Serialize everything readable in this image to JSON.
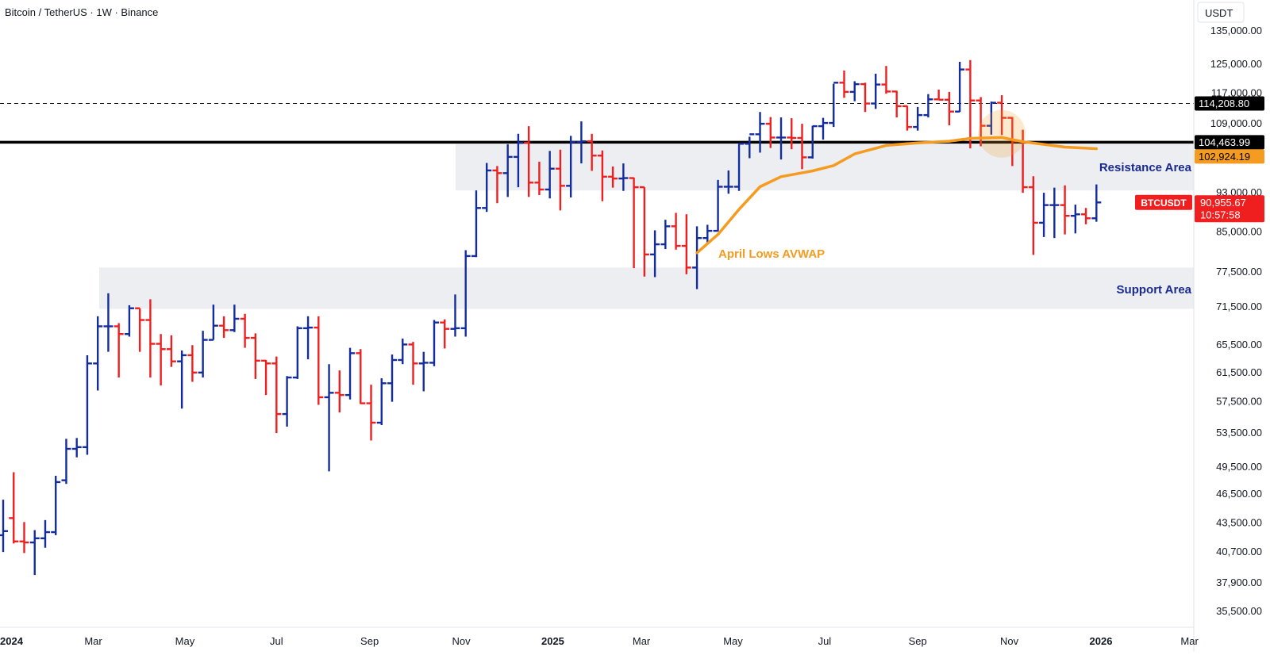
{
  "header": {
    "title": "Bitcoin / TetherUS · 1W · Binance"
  },
  "axis": {
    "currency": "USDT"
  },
  "colors": {
    "up": "#142d9e",
    "down": "#f01f1f",
    "avwap": "#f59b1f",
    "zone": "#eceef2",
    "resistance_line": "#000000",
    "label_blue": "#1a2a8c"
  },
  "annotations": {
    "avwap_label": "April Lows AVWAP",
    "resistance_label": "Resistance Area",
    "support_label": "Support Area"
  },
  "price_badges": {
    "dashed_level": "114,208.80",
    "resistance_level": "104,463.99",
    "avwap_level": "102,924.19",
    "symbol": "BTCUSDT",
    "last_price": "90,955.67",
    "countdown": "10:57:58"
  },
  "chart_data": {
    "type": "ohlc",
    "title": "Bitcoin / TetherUS · 1W · Binance",
    "scale": "log",
    "ylim": [
      34000,
      145000
    ],
    "y_ticks": [
      35500,
      37900,
      40700,
      43500,
      46500,
      49500,
      53500,
      57500,
      61500,
      65500,
      71500,
      77500,
      85000,
      93000,
      101000,
      109000,
      117000,
      125000,
      135000
    ],
    "x_ticks": [
      {
        "label": "2024",
        "date": "2024-01-01",
        "bold": true
      },
      {
        "label": "Mar",
        "date": "2024-03-01"
      },
      {
        "label": "May",
        "date": "2024-05-01"
      },
      {
        "label": "Jul",
        "date": "2024-07-01"
      },
      {
        "label": "Sep",
        "date": "2024-09-01"
      },
      {
        "label": "Nov",
        "date": "2024-11-01"
      },
      {
        "label": "2025",
        "date": "2025-01-01",
        "bold": true
      },
      {
        "label": "Mar",
        "date": "2025-03-01"
      },
      {
        "label": "May",
        "date": "2025-05-01"
      },
      {
        "label": "Jul",
        "date": "2025-07-01"
      },
      {
        "label": "Sep",
        "date": "2025-09-01"
      },
      {
        "label": "Nov",
        "date": "2025-11-01"
      },
      {
        "label": "2026",
        "date": "2026-01-01",
        "bold": true
      },
      {
        "label": "Mar",
        "date": "2026-03-01"
      }
    ],
    "resistance_zone": [
      93500,
      104000
    ],
    "support_zone": [
      71200,
      78300
    ],
    "horizontal_lines": [
      {
        "price": 114208.8,
        "style": "dashed"
      },
      {
        "price": 104463.99,
        "style": "solid"
      }
    ],
    "highlight_circle": {
      "date": "2025-10-27",
      "price": 106500
    },
    "avwap_points": [
      [
        "2025-04-07",
        81000
      ],
      [
        "2025-04-21",
        84500
      ],
      [
        "2025-05-05",
        89500
      ],
      [
        "2025-05-19",
        94300
      ],
      [
        "2025-06-02",
        96500
      ],
      [
        "2025-06-23",
        97800
      ],
      [
        "2025-07-07",
        99000
      ],
      [
        "2025-07-21",
        101700
      ],
      [
        "2025-08-11",
        103700
      ],
      [
        "2025-09-01",
        104300
      ],
      [
        "2025-09-22",
        104700
      ],
      [
        "2025-10-06",
        105400
      ],
      [
        "2025-10-27",
        105600
      ],
      [
        "2025-11-10",
        104600
      ],
      [
        "2025-12-08",
        103300
      ],
      [
        "2025-12-29",
        102924
      ]
    ],
    "bars": [
      {
        "date": "2024-01-01",
        "o": 42300,
        "h": 45900,
        "l": 40700,
        "c": 42700
      },
      {
        "date": "2024-01-08",
        "o": 44000,
        "h": 48900,
        "l": 41500,
        "c": 41700
      },
      {
        "date": "2024-01-15",
        "o": 41700,
        "h": 43600,
        "l": 40600,
        "c": 41600
      },
      {
        "date": "2024-01-22",
        "o": 41600,
        "h": 42800,
        "l": 38600,
        "c": 42000
      },
      {
        "date": "2024-01-29",
        "o": 42000,
        "h": 43800,
        "l": 41100,
        "c": 42600
      },
      {
        "date": "2024-02-05",
        "o": 42600,
        "h": 48500,
        "l": 42300,
        "c": 47800
      },
      {
        "date": "2024-02-12",
        "o": 48000,
        "h": 52800,
        "l": 47600,
        "c": 51600
      },
      {
        "date": "2024-02-19",
        "o": 51600,
        "h": 52900,
        "l": 50600,
        "c": 51800
      },
      {
        "date": "2024-02-26",
        "o": 51800,
        "h": 64000,
        "l": 50900,
        "c": 62800
      },
      {
        "date": "2024-03-04",
        "o": 62800,
        "h": 70000,
        "l": 59000,
        "c": 68400
      },
      {
        "date": "2024-03-11",
        "o": 68400,
        "h": 73800,
        "l": 64500,
        "c": 68400
      },
      {
        "date": "2024-03-18",
        "o": 68400,
        "h": 68900,
        "l": 60800,
        "c": 67200
      },
      {
        "date": "2024-03-25",
        "o": 67200,
        "h": 71800,
        "l": 66800,
        "c": 71300
      },
      {
        "date": "2024-04-01",
        "o": 71300,
        "h": 71300,
        "l": 64500,
        "c": 69400
      },
      {
        "date": "2024-04-08",
        "o": 69400,
        "h": 72800,
        "l": 60800,
        "c": 65700
      },
      {
        "date": "2024-04-15",
        "o": 65700,
        "h": 67200,
        "l": 59700,
        "c": 64900
      },
      {
        "date": "2024-04-22",
        "o": 64900,
        "h": 67000,
        "l": 62300,
        "c": 63100
      },
      {
        "date": "2024-04-29",
        "o": 63100,
        "h": 64700,
        "l": 56600,
        "c": 64000
      },
      {
        "date": "2024-05-06",
        "o": 64000,
        "h": 65500,
        "l": 60200,
        "c": 61500
      },
      {
        "date": "2024-05-13",
        "o": 61500,
        "h": 67700,
        "l": 60800,
        "c": 66300
      },
      {
        "date": "2024-05-20",
        "o": 66300,
        "h": 71900,
        "l": 66300,
        "c": 68500
      },
      {
        "date": "2024-05-27",
        "o": 68500,
        "h": 70000,
        "l": 66600,
        "c": 67800
      },
      {
        "date": "2024-06-03",
        "o": 67800,
        "h": 71900,
        "l": 67500,
        "c": 69600
      },
      {
        "date": "2024-06-10",
        "o": 69600,
        "h": 70400,
        "l": 65100,
        "c": 66600
      },
      {
        "date": "2024-06-17",
        "o": 66600,
        "h": 67300,
        "l": 60600,
        "c": 63200
      },
      {
        "date": "2024-06-24",
        "o": 63200,
        "h": 63300,
        "l": 58400,
        "c": 62800
      },
      {
        "date": "2024-07-01",
        "o": 62800,
        "h": 63800,
        "l": 53500,
        "c": 55900
      },
      {
        "date": "2024-07-08",
        "o": 55900,
        "h": 61000,
        "l": 54300,
        "c": 60800
      },
      {
        "date": "2024-07-15",
        "o": 60800,
        "h": 68400,
        "l": 60600,
        "c": 68100
      },
      {
        "date": "2024-07-22",
        "o": 68100,
        "h": 70000,
        "l": 63400,
        "c": 68200
      },
      {
        "date": "2024-07-29",
        "o": 68200,
        "h": 70000,
        "l": 57100,
        "c": 58100
      },
      {
        "date": "2024-08-05",
        "o": 58100,
        "h": 62700,
        "l": 49000,
        "c": 58700
      },
      {
        "date": "2024-08-12",
        "o": 58700,
        "h": 61800,
        "l": 56100,
        "c": 58400
      },
      {
        "date": "2024-08-19",
        "o": 58400,
        "h": 65100,
        "l": 57800,
        "c": 64300
      },
      {
        "date": "2024-08-26",
        "o": 64300,
        "h": 64900,
        "l": 57200,
        "c": 57300
      },
      {
        "date": "2024-09-02",
        "o": 57300,
        "h": 59800,
        "l": 52600,
        "c": 54800
      },
      {
        "date": "2024-09-09",
        "o": 54800,
        "h": 60700,
        "l": 54500,
        "c": 60000
      },
      {
        "date": "2024-09-16",
        "o": 60000,
        "h": 64100,
        "l": 57500,
        "c": 63300
      },
      {
        "date": "2024-09-23",
        "o": 63300,
        "h": 66500,
        "l": 62700,
        "c": 65600
      },
      {
        "date": "2024-09-30",
        "o": 65600,
        "h": 66000,
        "l": 59800,
        "c": 62800
      },
      {
        "date": "2024-10-07",
        "o": 62800,
        "h": 64500,
        "l": 58900,
        "c": 62900
      },
      {
        "date": "2024-10-14",
        "o": 62900,
        "h": 69400,
        "l": 62400,
        "c": 69000
      },
      {
        "date": "2024-10-21",
        "o": 69000,
        "h": 69500,
        "l": 65000,
        "c": 68000
      },
      {
        "date": "2024-10-28",
        "o": 68000,
        "h": 73600,
        "l": 66800,
        "c": 68100
      },
      {
        "date": "2024-11-04",
        "o": 68100,
        "h": 81500,
        "l": 66800,
        "c": 80400
      },
      {
        "date": "2024-11-11",
        "o": 80400,
        "h": 93500,
        "l": 80200,
        "c": 89800
      },
      {
        "date": "2024-11-18",
        "o": 89800,
        "h": 99600,
        "l": 89000,
        "c": 97900
      },
      {
        "date": "2024-11-25",
        "o": 97900,
        "h": 98900,
        "l": 90800,
        "c": 97300
      },
      {
        "date": "2024-12-02",
        "o": 97300,
        "h": 104000,
        "l": 92100,
        "c": 101000
      },
      {
        "date": "2024-12-09",
        "o": 101000,
        "h": 106500,
        "l": 94200,
        "c": 104300
      },
      {
        "date": "2024-12-16",
        "o": 104300,
        "h": 108400,
        "l": 92100,
        "c": 95200
      },
      {
        "date": "2024-12-23",
        "o": 95200,
        "h": 99900,
        "l": 92500,
        "c": 93700
      },
      {
        "date": "2024-12-30",
        "o": 93700,
        "h": 102400,
        "l": 91800,
        "c": 98300
      },
      {
        "date": "2025-01-06",
        "o": 98300,
        "h": 102700,
        "l": 89300,
        "c": 94500
      },
      {
        "date": "2025-01-13",
        "o": 94500,
        "h": 106000,
        "l": 92000,
        "c": 104500
      },
      {
        "date": "2025-01-20",
        "o": 104500,
        "h": 109600,
        "l": 99500,
        "c": 104700
      },
      {
        "date": "2025-01-27",
        "o": 104700,
        "h": 106500,
        "l": 97800,
        "c": 101300
      },
      {
        "date": "2025-02-03",
        "o": 101300,
        "h": 102500,
        "l": 91200,
        "c": 96500
      },
      {
        "date": "2025-02-10",
        "o": 96500,
        "h": 98800,
        "l": 94100,
        "c": 96100
      },
      {
        "date": "2025-02-17",
        "o": 96100,
        "h": 99500,
        "l": 93400,
        "c": 96200
      },
      {
        "date": "2025-02-24",
        "o": 96200,
        "h": 96300,
        "l": 78200,
        "c": 94200
      },
      {
        "date": "2025-03-03",
        "o": 94200,
        "h": 94200,
        "l": 76700,
        "c": 80700
      },
      {
        "date": "2025-03-10",
        "o": 80700,
        "h": 85300,
        "l": 76600,
        "c": 82600
      },
      {
        "date": "2025-03-17",
        "o": 82600,
        "h": 87400,
        "l": 81700,
        "c": 86100
      },
      {
        "date": "2025-03-24",
        "o": 86100,
        "h": 88800,
        "l": 81600,
        "c": 82300
      },
      {
        "date": "2025-03-31",
        "o": 82300,
        "h": 88500,
        "l": 77100,
        "c": 78300
      },
      {
        "date": "2025-04-07",
        "o": 78300,
        "h": 86100,
        "l": 74500,
        "c": 83800
      },
      {
        "date": "2025-04-14",
        "o": 83800,
        "h": 86400,
        "l": 83000,
        "c": 85200
      },
      {
        "date": "2025-04-21",
        "o": 85200,
        "h": 95800,
        "l": 85100,
        "c": 94300
      },
      {
        "date": "2025-04-28",
        "o": 94300,
        "h": 97900,
        "l": 92800,
        "c": 94300
      },
      {
        "date": "2025-05-05",
        "o": 94300,
        "h": 104100,
        "l": 93400,
        "c": 104100
      },
      {
        "date": "2025-05-12",
        "o": 104100,
        "h": 105800,
        "l": 100700,
        "c": 106400
      },
      {
        "date": "2025-05-19",
        "o": 106400,
        "h": 112000,
        "l": 102000,
        "c": 109000
      },
      {
        "date": "2025-05-26",
        "o": 109000,
        "h": 110700,
        "l": 103100,
        "c": 105600
      },
      {
        "date": "2025-06-02",
        "o": 105600,
        "h": 110600,
        "l": 100400,
        "c": 105600
      },
      {
        "date": "2025-06-09",
        "o": 105600,
        "h": 110400,
        "l": 102800,
        "c": 105500
      },
      {
        "date": "2025-06-16",
        "o": 105500,
        "h": 109000,
        "l": 98200,
        "c": 100900
      },
      {
        "date": "2025-06-23",
        "o": 100900,
        "h": 108500,
        "l": 100600,
        "c": 108400
      },
      {
        "date": "2025-06-30",
        "o": 108400,
        "h": 110500,
        "l": 105100,
        "c": 109200
      },
      {
        "date": "2025-07-07",
        "o": 109200,
        "h": 119500,
        "l": 108200,
        "c": 119800
      },
      {
        "date": "2025-07-14",
        "o": 119800,
        "h": 123200,
        "l": 115700,
        "c": 117300
      },
      {
        "date": "2025-07-21",
        "o": 117300,
        "h": 120200,
        "l": 114800,
        "c": 119400
      },
      {
        "date": "2025-07-28",
        "o": 119400,
        "h": 119800,
        "l": 112000,
        "c": 114200
      },
      {
        "date": "2025-08-04",
        "o": 114200,
        "h": 122300,
        "l": 112800,
        "c": 119300
      },
      {
        "date": "2025-08-11",
        "o": 119300,
        "h": 124500,
        "l": 116800,
        "c": 117400
      },
      {
        "date": "2025-08-18",
        "o": 117400,
        "h": 117600,
        "l": 110600,
        "c": 113500
      },
      {
        "date": "2025-08-25",
        "o": 113500,
        "h": 113600,
        "l": 107300,
        "c": 108200
      },
      {
        "date": "2025-09-01",
        "o": 108200,
        "h": 113300,
        "l": 107300,
        "c": 111200
      },
      {
        "date": "2025-09-08",
        "o": 111200,
        "h": 116700,
        "l": 110600,
        "c": 115300
      },
      {
        "date": "2025-09-15",
        "o": 115300,
        "h": 117900,
        "l": 115400,
        "c": 115200
      },
      {
        "date": "2025-09-22",
        "o": 115200,
        "h": 117300,
        "l": 108600,
        "c": 112100
      },
      {
        "date": "2025-09-29",
        "o": 112100,
        "h": 125700,
        "l": 112000,
        "c": 123500
      },
      {
        "date": "2025-10-06",
        "o": 123500,
        "h": 126200,
        "l": 103000,
        "c": 115000
      },
      {
        "date": "2025-10-13",
        "o": 115000,
        "h": 115900,
        "l": 103500,
        "c": 108500
      },
      {
        "date": "2025-10-20",
        "o": 108500,
        "h": 114700,
        "l": 106300,
        "c": 114400
      },
      {
        "date": "2025-10-27",
        "o": 114400,
        "h": 116400,
        "l": 106200,
        "c": 110500
      },
      {
        "date": "2025-11-03",
        "o": 110500,
        "h": 110700,
        "l": 98900,
        "c": 104700
      },
      {
        "date": "2025-11-10",
        "o": 104700,
        "h": 107500,
        "l": 93000,
        "c": 94200
      },
      {
        "date": "2025-11-17",
        "o": 94200,
        "h": 96600,
        "l": 80600,
        "c": 86800
      },
      {
        "date": "2025-11-24",
        "o": 86800,
        "h": 93000,
        "l": 84000,
        "c": 90400
      },
      {
        "date": "2025-12-01",
        "o": 90400,
        "h": 94100,
        "l": 83800,
        "c": 90400
      },
      {
        "date": "2025-12-08",
        "o": 90400,
        "h": 94600,
        "l": 84500,
        "c": 88200
      },
      {
        "date": "2025-12-15",
        "o": 88200,
        "h": 90500,
        "l": 84700,
        "c": 88500
      },
      {
        "date": "2025-12-22",
        "o": 88500,
        "h": 89800,
        "l": 86500,
        "c": 87700
      },
      {
        "date": "2025-12-29",
        "o": 87700,
        "h": 94800,
        "l": 87000,
        "c": 90955.67
      }
    ]
  }
}
